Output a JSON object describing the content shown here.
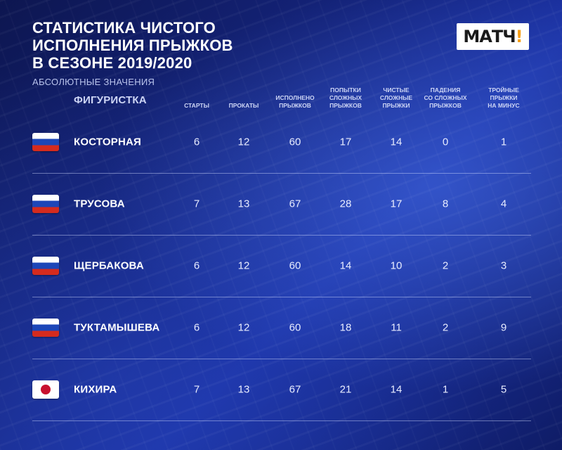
{
  "title_lines": [
    "СТАТИСТИКА ЧИСТОГО",
    "ИСПОЛНЕНИЯ ПРЫЖКОВ",
    "В СЕЗОНЕ 2019/2020"
  ],
  "subtitle": "АБСОЛЮТНЫЕ ЗНАЧЕНИЯ",
  "logo": {
    "main": "МАТЧ",
    "mark": "!"
  },
  "columns": [
    {
      "label": "ФИГУРИСТКА"
    },
    {
      "label": "СТАРТЫ"
    },
    {
      "label": "ПРОКАТЫ"
    },
    {
      "label": "ИСПОЛНЕНО\nПРЫЖКОВ"
    },
    {
      "label": "ПОПЫТКИ\nСЛОЖНЫХ\nПРЫЖКОВ"
    },
    {
      "label": "ЧИСТЫЕ\nСЛОЖНЫЕ\nПРЫЖКИ"
    },
    {
      "label": "ПАДЕНИЯ\nСО СЛОЖНЫХ\nПРЫЖКОВ"
    },
    {
      "label": "ТРОЙНЫЕ\nПРЫЖКИ\nНА МИНУС"
    }
  ],
  "rows": [
    {
      "flag": "russia-flag",
      "name": "КОСТОРНАЯ",
      "values": [
        "6",
        "12",
        "60",
        "17",
        "14",
        "0",
        "1"
      ]
    },
    {
      "flag": "russia-flag",
      "name": "ТРУСОВА",
      "values": [
        "7",
        "13",
        "67",
        "28",
        "17",
        "8",
        "4"
      ]
    },
    {
      "flag": "russia-flag",
      "name": "ЩЕРБАКОВА",
      "values": [
        "6",
        "12",
        "60",
        "14",
        "10",
        "2",
        "3"
      ]
    },
    {
      "flag": "russia-flag",
      "name": "ТУКТАМЫШЕВА",
      "values": [
        "6",
        "12",
        "60",
        "18",
        "11",
        "2",
        "9"
      ]
    },
    {
      "flag": "japan-flag",
      "name": "КИХИРА",
      "values": [
        "7",
        "13",
        "67",
        "21",
        "14",
        "1",
        "5"
      ]
    }
  ],
  "colors": {
    "accent_logo": "#f6a01a",
    "background": "#14237a",
    "flag_red": "#d52b1e",
    "flag_blue": "#1c46b8"
  }
}
